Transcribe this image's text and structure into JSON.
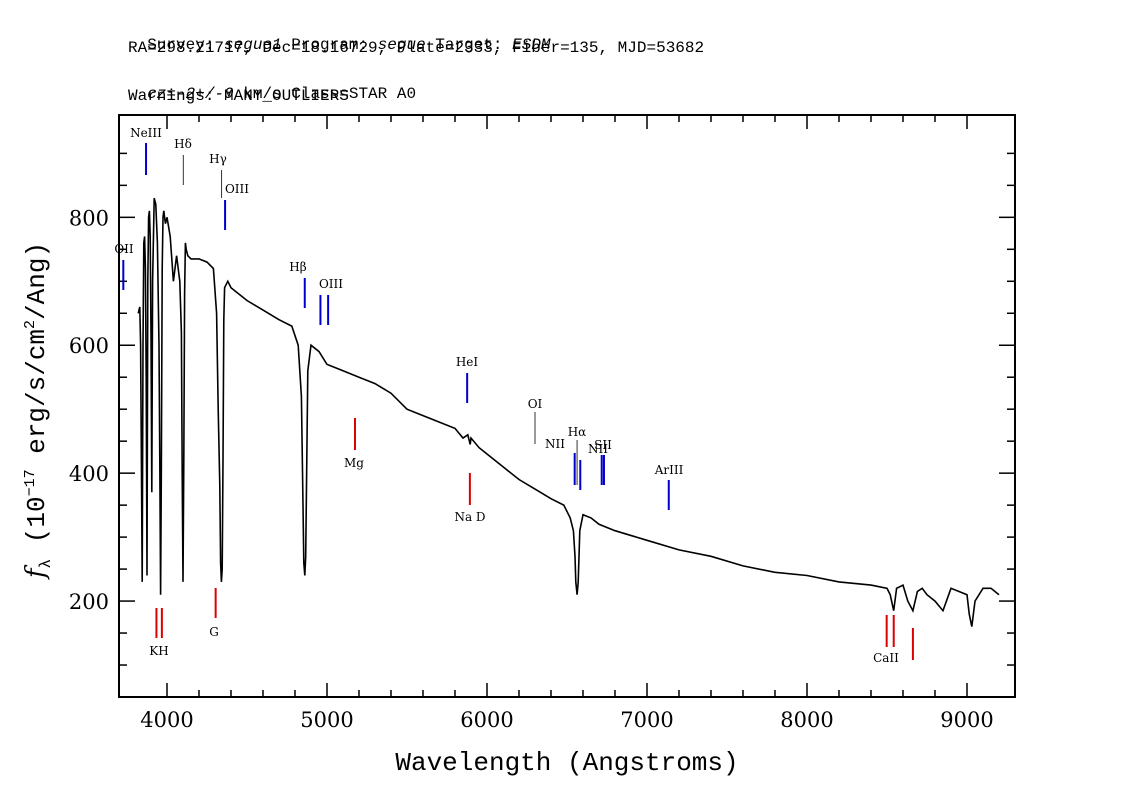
{
  "header": {
    "survey_label": "Survey:",
    "survey": "segue1",
    "program_label": "Program:",
    "program": "segue",
    "target_label": "Target:",
    "target": "ESDM",
    "line2": "RA=298.21717, Dec=18.16729, Plate=2333, Fiber=135, MJD=53682",
    "cz_label": "cz=",
    "cz_value": "-2+/-0",
    "cz_rest": "km/s Class=STAR A0",
    "warnings": "Warnings: MANY_OUTLIERS"
  },
  "chart_data": {
    "type": "line",
    "xlabel": "Wavelength (Angstroms)",
    "ylabel": "f_λ (10^-17 erg/s/cm^2/Ang)",
    "xlim": [
      3700,
      9300
    ],
    "ylim": [
      50,
      960
    ],
    "x_ticks": [
      4000,
      5000,
      6000,
      7000,
      8000,
      9000
    ],
    "y_ticks": [
      200,
      400,
      600,
      800
    ],
    "colors": {
      "spectrum": "#000000",
      "emission": "#0000cc",
      "absorption": "#dd0000"
    },
    "series": [
      {
        "x": [
          3820,
          3830,
          3835,
          3840,
          3845,
          3850,
          3855,
          3860,
          3865,
          3870,
          3875,
          3880,
          3885,
          3890,
          3895,
          3900,
          3905,
          3910,
          3920,
          3930,
          3940,
          3950,
          3955,
          3960,
          3965,
          3970,
          3975,
          3980,
          3985,
          3990,
          4000,
          4020,
          4040,
          4060,
          4080,
          4090,
          4095,
          4100,
          4105,
          4110,
          4115,
          4120,
          4130,
          4150,
          4200,
          4250,
          4290,
          4310,
          4320,
          4330,
          4335,
          4340,
          4345,
          4350,
          4355,
          4360,
          4380,
          4400,
          4450,
          4500,
          4600,
          4700,
          4780,
          4820,
          4840,
          4850,
          4855,
          4861,
          4867,
          4872,
          4880,
          4900,
          4950,
          5000,
          5100,
          5200,
          5300,
          5400,
          5500,
          5600,
          5700,
          5800,
          5850,
          5880,
          5890,
          5895,
          5900,
          5950,
          6000,
          6100,
          6200,
          6300,
          6400,
          6480,
          6520,
          6540,
          6550,
          6555,
          6563,
          6570,
          6575,
          6580,
          6600,
          6650,
          6700,
          6800,
          7000,
          7200,
          7400,
          7600,
          7800,
          8000,
          8200,
          8400,
          8500,
          8520,
          8542,
          8560,
          8600,
          8630,
          8662,
          8690,
          8720,
          8750,
          8800,
          8850,
          8900,
          8950,
          9000,
          9014,
          9030,
          9050,
          9100,
          9150,
          9200
        ],
        "y": [
          650,
          660,
          600,
          420,
          230,
          600,
          760,
          770,
          720,
          550,
          240,
          700,
          800,
          810,
          770,
          620,
          370,
          700,
          830,
          820,
          760,
          600,
          420,
          210,
          420,
          720,
          800,
          810,
          800,
          790,
          800,
          770,
          700,
          740,
          700,
          620,
          400,
          230,
          420,
          680,
          760,
          750,
          740,
          735,
          735,
          730,
          720,
          650,
          500,
          380,
          260,
          230,
          250,
          420,
          640,
          690,
          700,
          690,
          680,
          670,
          655,
          640,
          630,
          600,
          520,
          350,
          260,
          240,
          270,
          380,
          560,
          600,
          590,
          570,
          560,
          550,
          540,
          525,
          500,
          490,
          480,
          470,
          455,
          460,
          450,
          445,
          455,
          440,
          430,
          410,
          390,
          375,
          360,
          350,
          330,
          310,
          270,
          230,
          210,
          230,
          270,
          310,
          335,
          330,
          320,
          310,
          295,
          280,
          270,
          255,
          245,
          240,
          230,
          225,
          220,
          210,
          185,
          220,
          225,
          200,
          185,
          215,
          220,
          210,
          200,
          185,
          220,
          215,
          210,
          180,
          160,
          200,
          220,
          220,
          210
        ]
      }
    ],
    "emission_lines": [
      "NeIII",
      "Hδ",
      "Hγ",
      "OIII",
      "OII",
      "Hβ",
      "OIII",
      "HeI",
      "OI",
      "NII",
      "Hα",
      "NII",
      "SII",
      "ArIII"
    ],
    "absorption_lines": [
      "K",
      "H",
      "G",
      "Mg",
      "Na D",
      "CaII"
    ]
  },
  "annotations": {
    "NeIII": "NeIII",
    "Hd": "Hδ",
    "Hg": "Hγ",
    "OIII_a": "OIII",
    "OII": "OII",
    "Hb": "Hβ",
    "OIII_b": "OIII",
    "HeI": "HeI",
    "OI": "OI",
    "NII_a": "NII",
    "Ha": "Hα",
    "NII_b": "NII",
    "SII": "SII",
    "ArIII": "ArIII",
    "KH": "KH",
    "G": "G",
    "Mg": "Mg",
    "NaD": "Na D",
    "CaII": "CaII"
  }
}
